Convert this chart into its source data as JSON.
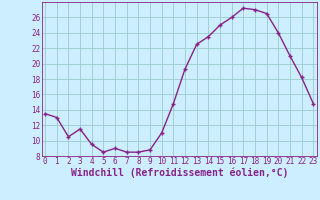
{
  "x": [
    0,
    1,
    2,
    3,
    4,
    5,
    6,
    7,
    8,
    9,
    10,
    11,
    12,
    13,
    14,
    15,
    16,
    17,
    18,
    19,
    20,
    21,
    22,
    23
  ],
  "y": [
    13.5,
    13.0,
    10.5,
    11.5,
    9.5,
    8.5,
    9.0,
    8.5,
    8.5,
    8.8,
    11.0,
    14.8,
    19.3,
    22.5,
    23.5,
    25.0,
    26.0,
    27.2,
    27.0,
    26.5,
    24.0,
    21.0,
    18.2,
    14.8
  ],
  "ylim": [
    8,
    28
  ],
  "yticks": [
    8,
    10,
    12,
    14,
    16,
    18,
    20,
    22,
    24,
    26
  ],
  "xticks": [
    0,
    1,
    2,
    3,
    4,
    5,
    6,
    7,
    8,
    9,
    10,
    11,
    12,
    13,
    14,
    15,
    16,
    17,
    18,
    19,
    20,
    21,
    22,
    23
  ],
  "line_color": "#882288",
  "marker_color": "#882288",
  "bg_color": "#cceeff",
  "grid_color": "#99cccc",
  "xlabel": "Windchill (Refroidissement éolien,°C)",
  "fig_bg": "#cceeff",
  "xlabel_color": "#882288",
  "tick_color": "#882288",
  "tick_fontsize": 5.5,
  "label_fontsize": 7.0
}
